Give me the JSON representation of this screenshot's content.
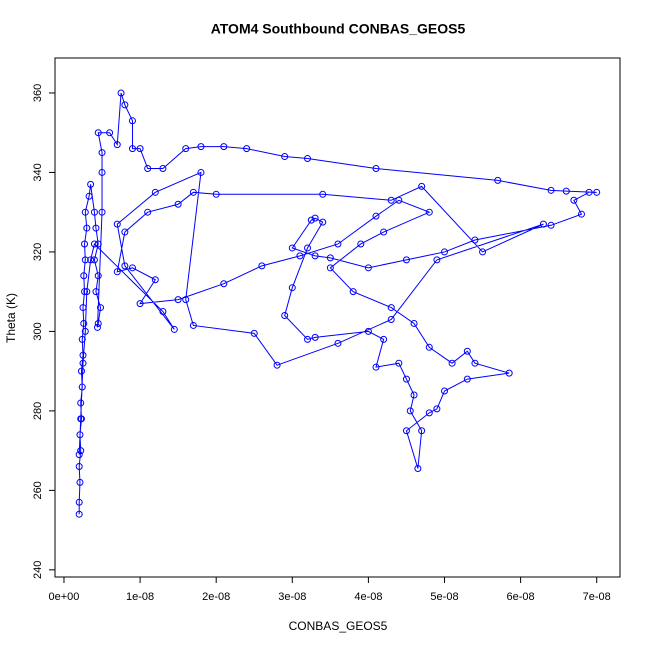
{
  "chart_data": {
    "type": "line",
    "title": "ATOM4 Southbound CONBAS_GEOS5",
    "x_label": "CONBAS_GEOS5",
    "y_label": "Theta (K)",
    "xlim": [
      -1.18e-09,
      7.306e-08
    ],
    "ylim": [
      238.2,
      368.8
    ],
    "xticks": [
      {
        "value": 0,
        "label": "0e+00"
      },
      {
        "value": 1e-08,
        "label": "1e-08"
      },
      {
        "value": 2e-08,
        "label": "2e-08"
      },
      {
        "value": 3e-08,
        "label": "3e-08"
      },
      {
        "value": 4e-08,
        "label": "4e-08"
      },
      {
        "value": 5e-08,
        "label": "5e-08"
      },
      {
        "value": 6e-08,
        "label": "6e-08"
      },
      {
        "value": 7e-08,
        "label": "7e-08"
      }
    ],
    "yticks": [
      240,
      260,
      280,
      300,
      320,
      340,
      360
    ],
    "grid": false,
    "markers": true,
    "x": [
      2e-09,
      2e-09,
      2.1e-09,
      2e-09,
      2.2e-09,
      2.1e-09,
      2.3e-09,
      2.2e-09,
      2.4e-09,
      2.3e-09,
      2.5e-09,
      2.4e-09,
      2.6e-09,
      2.5e-09,
      2.7e-09,
      2.6e-09,
      2.8e-09,
      2.7e-09,
      3e-09,
      2.8e-09,
      3.3e-09,
      3.5e-09,
      4e-09,
      4.2e-09,
      4.5e-09,
      4e-09,
      4.5e-09,
      4.2e-09,
      4.8e-09,
      4.5e-09,
      4.4e-09,
      5e-09,
      5e-09,
      5e-09,
      4.5e-09,
      6e-09,
      7e-09,
      7.5e-09,
      8e-09,
      9e-09,
      9e-09,
      1e-08,
      1.1e-08,
      1.3e-08,
      1.6e-08,
      1.8e-08,
      2.1e-08,
      2.4e-08,
      2.9e-08,
      3.2e-08,
      4.1e-08,
      5.7e-08,
      6.4e-08,
      6.6e-08,
      7e-08,
      6.9e-08,
      6.7e-08,
      6.8e-08,
      6.4e-08,
      5.4e-08,
      5e-08,
      4.5e-08,
      4e-08,
      3.5e-08,
      3.3e-08,
      3e-08,
      3.25e-08,
      3.3e-08,
      3.4e-08,
      3.2e-08,
      3e-08,
      2.9e-08,
      3.2e-08,
      3.3e-08,
      4e-08,
      4.2e-08,
      4.1e-08,
      4.4e-08,
      4.5e-08,
      4.6e-08,
      4.55e-08,
      4.7e-08,
      4.65e-08,
      4.5e-08,
      4.8e-08,
      4.9e-08,
      5e-08,
      5.3e-08,
      5.85e-08,
      5.4e-08,
      5.3e-08,
      5.1e-08,
      4.8e-08,
      4.6e-08,
      4.3e-08,
      3.8e-08,
      3.5e-08,
      3.9e-08,
      4.2e-08,
      4.8e-08,
      4.4e-08,
      4.1e-08,
      3.6e-08,
      3.1e-08,
      2.6e-08,
      2.1e-08,
      1.5e-08,
      1e-08,
      1.2e-08,
      9e-09,
      7e-09,
      8e-09,
      1.1e-08,
      1.5e-08,
      1.7e-08,
      2e-08,
      3.4e-08,
      4.3e-08,
      4.7e-08,
      5.5e-08,
      6.3e-08,
      4.9e-08,
      4.3e-08,
      3.6e-08,
      2.8e-08,
      2.5e-08,
      1.7e-08,
      1.6e-08,
      1.8e-08,
      1.2e-08,
      7e-09,
      8e-09,
      1.45e-08,
      1.3e-08,
      4e-09,
      3.5e-09,
      3e-09,
      2.8e-09,
      2.5e-09,
      2.2e-09,
      2e-09
    ],
    "series": [
      {
        "color": "#0000ff",
        "values": [
          254,
          257,
          262,
          266,
          270,
          274,
          278,
          282,
          286,
          290,
          294,
          298,
          302,
          306,
          310,
          314,
          318,
          322,
          326,
          330,
          334,
          337,
          330,
          326,
          322,
          318,
          314,
          310,
          306,
          302,
          301,
          330,
          340,
          345,
          350,
          350,
          347,
          360,
          357,
          353,
          346,
          346,
          341,
          341,
          346,
          346.5,
          346.5,
          346,
          344,
          343.5,
          341,
          338,
          335.5,
          335.3,
          335,
          335,
          333,
          329.5,
          326.7,
          323,
          320,
          318,
          316,
          318.5,
          319,
          321,
          328,
          328.5,
          327.5,
          321,
          311,
          304,
          298,
          298.5,
          300,
          298,
          291,
          292,
          288,
          284,
          280,
          275,
          265.5,
          275,
          279.5,
          280.5,
          285,
          288,
          289.5,
          292,
          295,
          292,
          296,
          302,
          306,
          310,
          316,
          322,
          325,
          330,
          333,
          329,
          322,
          319,
          316.5,
          312,
          308,
          307,
          313,
          316,
          315,
          325,
          330,
          332,
          335,
          334.5,
          334.5,
          333,
          336.5,
          320,
          327,
          318,
          303,
          297,
          291.5,
          299.5,
          301.5,
          308,
          340,
          335,
          327,
          316.5,
          300.5,
          305,
          322,
          318,
          310,
          300,
          292,
          278,
          269
        ]
      }
    ]
  }
}
